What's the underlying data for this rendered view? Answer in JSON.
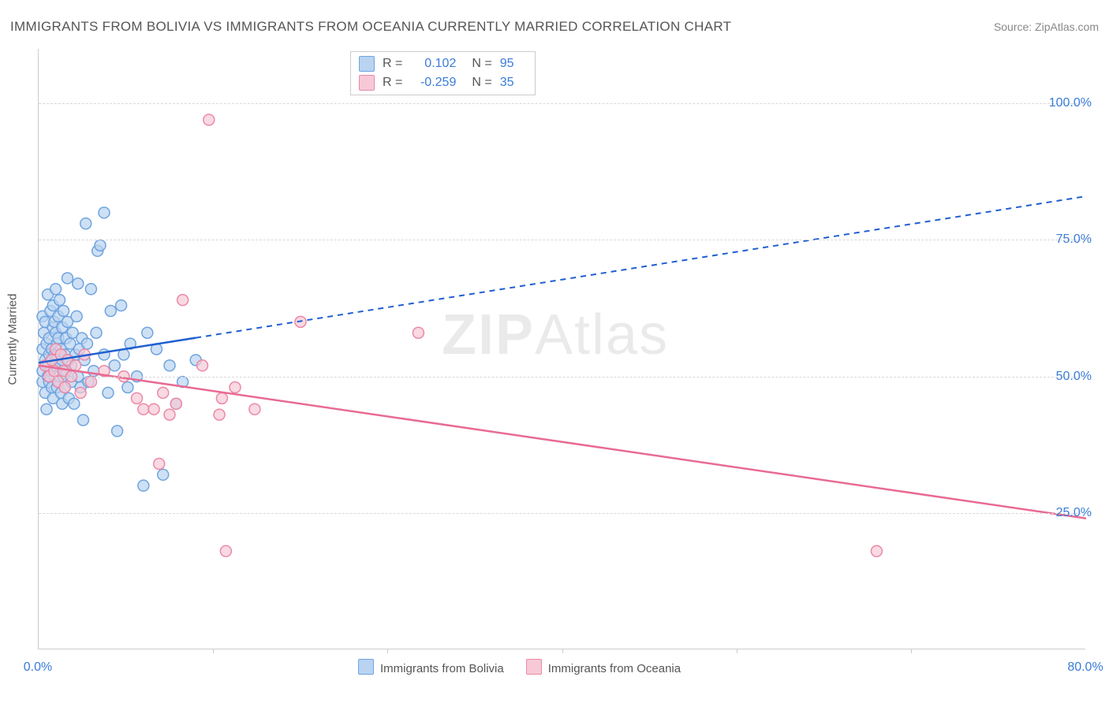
{
  "title": "IMMIGRANTS FROM BOLIVIA VS IMMIGRANTS FROM OCEANIA CURRENTLY MARRIED CORRELATION CHART",
  "source": "Source: ZipAtlas.com",
  "watermark_a": "ZIP",
  "watermark_b": "Atlas",
  "chart": {
    "type": "scatter+regression",
    "xlim": [
      0,
      80
    ],
    "ylim": [
      0,
      110
    ],
    "x_ticks": [
      0,
      80
    ],
    "x_tick_labels": [
      "0.0%",
      "80.0%"
    ],
    "x_minor_ticks": [
      13.3,
      26.6,
      40,
      53.3,
      66.6
    ],
    "y_ticks": [
      25,
      50,
      75,
      100
    ],
    "y_tick_labels": [
      "25.0%",
      "50.0%",
      "75.0%",
      "100.0%"
    ],
    "ylabel": "Currently Married",
    "grid_color": "#d8d8d8",
    "axis_color": "#cccccc",
    "background_color": "#ffffff",
    "marker_radius": 7,
    "marker_stroke_width": 1.5,
    "trend_solid_xmax": 12,
    "series": [
      {
        "name": "Immigrants from Bolivia",
        "fill": "#b9d3f0",
        "stroke": "#6fa4e0",
        "line_color": "#1f5fd0",
        "R": "0.102",
        "N": "95",
        "trend_y0": 52.5,
        "trend_y80": 83,
        "points": [
          [
            0.3,
            61
          ],
          [
            0.3,
            51
          ],
          [
            0.3,
            49
          ],
          [
            0.3,
            55
          ],
          [
            0.4,
            58
          ],
          [
            0.5,
            53
          ],
          [
            0.5,
            60
          ],
          [
            0.5,
            47
          ],
          [
            0.6,
            44
          ],
          [
            0.6,
            56
          ],
          [
            0.7,
            52
          ],
          [
            0.7,
            50
          ],
          [
            0.7,
            65
          ],
          [
            0.8,
            54
          ],
          [
            0.8,
            57
          ],
          [
            0.8,
            49
          ],
          [
            0.9,
            62
          ],
          [
            0.9,
            51
          ],
          [
            1.0,
            55
          ],
          [
            1.0,
            48
          ],
          [
            1.0,
            53
          ],
          [
            1.1,
            59
          ],
          [
            1.1,
            46
          ],
          [
            1.1,
            63
          ],
          [
            1.2,
            54
          ],
          [
            1.2,
            60
          ],
          [
            1.2,
            50
          ],
          [
            1.3,
            52
          ],
          [
            1.3,
            58
          ],
          [
            1.3,
            66
          ],
          [
            1.4,
            48
          ],
          [
            1.4,
            56
          ],
          [
            1.4,
            54
          ],
          [
            1.5,
            61
          ],
          [
            1.5,
            49
          ],
          [
            1.5,
            57
          ],
          [
            1.6,
            52
          ],
          [
            1.6,
            64
          ],
          [
            1.6,
            50
          ],
          [
            1.7,
            55
          ],
          [
            1.7,
            47
          ],
          [
            1.8,
            53
          ],
          [
            1.8,
            59
          ],
          [
            1.8,
            45
          ],
          [
            1.9,
            62
          ],
          [
            1.9,
            50
          ],
          [
            2.0,
            54
          ],
          [
            2.0,
            48
          ],
          [
            2.1,
            57
          ],
          [
            2.1,
            51
          ],
          [
            2.2,
            60
          ],
          [
            2.2,
            68
          ],
          [
            2.3,
            53
          ],
          [
            2.3,
            46
          ],
          [
            2.4,
            56
          ],
          [
            2.5,
            49
          ],
          [
            2.5,
            52
          ],
          [
            2.6,
            58
          ],
          [
            2.7,
            45
          ],
          [
            2.8,
            54
          ],
          [
            2.9,
            61
          ],
          [
            3.0,
            50
          ],
          [
            3.0,
            67
          ],
          [
            3.1,
            55
          ],
          [
            3.2,
            48
          ],
          [
            3.3,
            57
          ],
          [
            3.4,
            42
          ],
          [
            3.5,
            53
          ],
          [
            3.6,
            78
          ],
          [
            3.7,
            56
          ],
          [
            3.8,
            49
          ],
          [
            4.0,
            66
          ],
          [
            4.2,
            51
          ],
          [
            4.4,
            58
          ],
          [
            4.5,
            73
          ],
          [
            4.7,
            74
          ],
          [
            5.0,
            80
          ],
          [
            5.0,
            54
          ],
          [
            5.3,
            47
          ],
          [
            5.5,
            62
          ],
          [
            5.8,
            52
          ],
          [
            6.0,
            40
          ],
          [
            6.3,
            63
          ],
          [
            6.5,
            54
          ],
          [
            6.8,
            48
          ],
          [
            7.0,
            56
          ],
          [
            7.5,
            50
          ],
          [
            8.0,
            30
          ],
          [
            8.3,
            58
          ],
          [
            9.0,
            55
          ],
          [
            9.5,
            32
          ],
          [
            10.0,
            52
          ],
          [
            10.5,
            45
          ],
          [
            11.0,
            49
          ],
          [
            12.0,
            53
          ]
        ]
      },
      {
        "name": "Immigrants from Oceania",
        "fill": "#f7c9d6",
        "stroke": "#ea89a7",
        "line_color": "#e86b92",
        "R": "-0.259",
        "N": "35",
        "trend_y0": 52,
        "trend_y80": 24,
        "points": [
          [
            0.5,
            52
          ],
          [
            0.8,
            50
          ],
          [
            1.0,
            53
          ],
          [
            1.2,
            51
          ],
          [
            1.3,
            55
          ],
          [
            1.5,
            49
          ],
          [
            1.7,
            54
          ],
          [
            1.9,
            51
          ],
          [
            2.0,
            48
          ],
          [
            2.2,
            53
          ],
          [
            2.5,
            50
          ],
          [
            2.8,
            52
          ],
          [
            3.2,
            47
          ],
          [
            3.5,
            54
          ],
          [
            4.0,
            49
          ],
          [
            5.0,
            51
          ],
          [
            6.5,
            50
          ],
          [
            7.5,
            46
          ],
          [
            8.0,
            44
          ],
          [
            8.8,
            44
          ],
          [
            9.2,
            34
          ],
          [
            9.5,
            47
          ],
          [
            10.0,
            43
          ],
          [
            10.5,
            45
          ],
          [
            11.0,
            64
          ],
          [
            12.5,
            52
          ],
          [
            13.0,
            97
          ],
          [
            13.8,
            43
          ],
          [
            14.0,
            46
          ],
          [
            14.3,
            18
          ],
          [
            15.0,
            48
          ],
          [
            16.5,
            44
          ],
          [
            20.0,
            60
          ],
          [
            29.0,
            58
          ],
          [
            64.0,
            18
          ]
        ]
      }
    ],
    "bottom_legend": [
      {
        "swatch_fill": "#b9d3f0",
        "swatch_stroke": "#6fa4e0",
        "label": "Immigrants from Bolivia"
      },
      {
        "swatch_fill": "#f7c9d6",
        "swatch_stroke": "#ea89a7",
        "label": "Immigrants from Oceania"
      }
    ]
  }
}
